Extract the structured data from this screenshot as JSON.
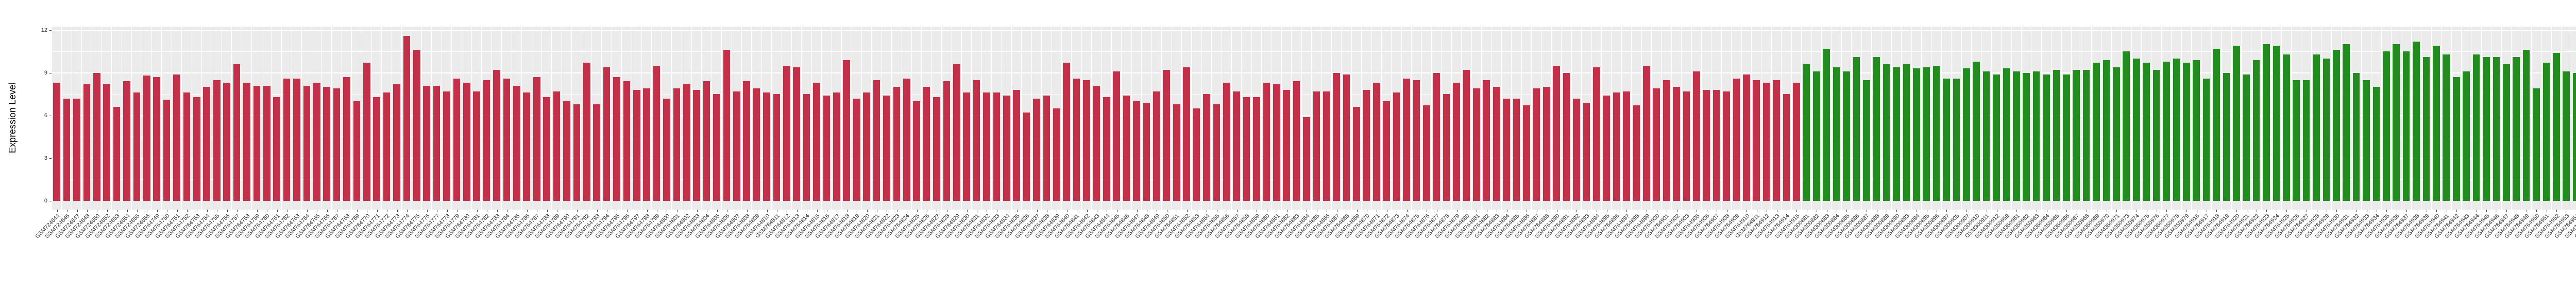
{
  "figure": {
    "background": "#FFFFFF",
    "panel_background": "#EBEBEB",
    "gridline_color": "#FFFFFF",
    "axis_text_color": "#333333",
    "axis_title_color": "#000000"
  },
  "chart_data": {
    "type": "bar",
    "title": "",
    "xlabel": "",
    "ylabel": "Expression Level",
    "ylim": [
      0,
      12
    ],
    "yticks": [
      0,
      3,
      6,
      9,
      12
    ],
    "grid": true,
    "legend_position": "none",
    "x_label_rotation_deg": 45,
    "groups": [
      {
        "name": "group-1-red",
        "color": "#C2304A",
        "labels": [
          "GSM724644",
          "GSM724646",
          "GSM724647",
          "GSM724648",
          "GSM724650",
          "GSM724652",
          "GSM724653",
          "GSM724654",
          "GSM724655",
          "GSM724656",
          "GSM764749",
          "GSM764750",
          "GSM764751",
          "GSM764752",
          "GSM764753",
          "GSM764754",
          "GSM764755",
          "GSM764756",
          "GSM764757",
          "GSM764758",
          "GSM764759",
          "GSM764760",
          "GSM764761",
          "GSM764762",
          "GSM764763",
          "GSM764764",
          "GSM764765",
          "GSM764766",
          "GSM764767",
          "GSM764768",
          "GSM764769",
          "GSM764770",
          "GSM764771",
          "GSM764772",
          "GSM764773",
          "GSM764774",
          "GSM764775",
          "GSM764776",
          "GSM764777",
          "GSM764778",
          "GSM764779",
          "GSM764780",
          "GSM764781",
          "GSM764782",
          "GSM764783",
          "GSM764784",
          "GSM764785",
          "GSM764786",
          "GSM764787",
          "GSM764788",
          "GSM764789",
          "GSM764790",
          "GSM764791",
          "GSM764792",
          "GSM764793",
          "GSM764794",
          "GSM764795",
          "GSM764796",
          "GSM764797",
          "GSM764798",
          "GSM764799",
          "GSM764800",
          "GSM764801",
          "GSM764802",
          "GSM764803",
          "GSM764804",
          "GSM764805",
          "GSM764806",
          "GSM764807",
          "GSM764808",
          "GSM764809",
          "GSM764810",
          "GSM764811",
          "GSM764812",
          "GSM764813",
          "GSM764814",
          "GSM764815",
          "GSM764816",
          "GSM764817",
          "GSM764818",
          "GSM764819",
          "GSM764820",
          "GSM764821",
          "GSM764822",
          "GSM764823",
          "GSM764824",
          "GSM764825",
          "GSM764826",
          "GSM764827",
          "GSM764828",
          "GSM764829",
          "GSM764830",
          "GSM764831",
          "GSM764832",
          "GSM764833",
          "GSM764834",
          "GSM764835",
          "GSM764836",
          "GSM764837",
          "GSM764838",
          "GSM764839",
          "GSM764840",
          "GSM764841",
          "GSM764842",
          "GSM764843",
          "GSM764844",
          "GSM764845",
          "GSM764846",
          "GSM764847",
          "GSM764848",
          "GSM764849",
          "GSM764850",
          "GSM764851",
          "GSM764852",
          "GSM764853",
          "GSM764854",
          "GSM764855",
          "GSM764856",
          "GSM764857",
          "GSM764858",
          "GSM764859",
          "GSM764860",
          "GSM764861",
          "GSM764862",
          "GSM764863",
          "GSM764864",
          "GSM764865",
          "GSM764866",
          "GSM764867",
          "GSM764868",
          "GSM764869",
          "GSM764870",
          "GSM764871",
          "GSM764872",
          "GSM764873",
          "GSM764874",
          "GSM764875",
          "GSM764876",
          "GSM764877",
          "GSM764878",
          "GSM764879",
          "GSM764880",
          "GSM764881",
          "GSM764882",
          "GSM764883",
          "GSM764884",
          "GSM764885",
          "GSM764886",
          "GSM764887",
          "GSM764888",
          "GSM764890",
          "GSM764891",
          "GSM764892",
          "GSM764893",
          "GSM764894",
          "GSM764895",
          "GSM764896",
          "GSM764897",
          "GSM764898",
          "GSM764899",
          "GSM764900",
          "GSM764901",
          "GSM764902",
          "GSM764903",
          "GSM764905",
          "GSM764906",
          "GSM764907",
          "GSM764908",
          "GSM764909",
          "GSM764910",
          "GSM764911",
          "GSM764912",
          "GSM764913",
          "GSM764914",
          "GSM764915"
        ],
        "values": [
          8.3,
          7.2,
          7.2,
          8.2,
          9.0,
          8.2,
          6.6,
          8.4,
          7.6,
          8.8,
          8.7,
          7.1,
          8.9,
          7.6,
          7.3,
          8.0,
          8.5,
          8.3,
          9.6,
          8.3,
          8.1,
          8.1,
          7.3,
          8.6,
          8.6,
          8.1,
          8.3,
          8.0,
          7.9,
          8.7,
          7.0,
          9.7,
          7.3,
          7.6,
          8.2,
          11.6,
          10.6,
          8.1,
          8.1,
          7.7,
          8.6,
          8.3,
          7.7,
          8.5,
          9.2,
          8.6,
          8.1,
          7.6,
          8.7,
          7.3,
          7.7,
          7.0,
          6.8,
          9.7,
          6.8,
          9.4,
          8.7,
          8.4,
          7.8,
          7.9,
          9.5,
          7.2,
          7.9,
          8.2,
          7.8,
          8.4,
          7.5,
          10.6,
          7.7,
          8.4,
          7.9,
          7.6,
          7.5,
          9.5,
          9.4,
          7.5,
          8.3,
          7.4,
          7.6,
          9.9,
          7.2,
          7.6,
          8.5,
          7.4,
          8.0,
          8.6,
          7.0,
          8.0,
          7.3,
          8.4,
          9.6,
          7.6,
          8.5,
          7.6,
          7.6,
          7.4,
          7.8,
          6.2,
          7.2,
          7.4,
          6.5,
          9.7,
          8.6,
          8.5,
          8.1,
          7.3,
          9.1,
          7.4,
          7.0,
          6.9,
          7.7,
          9.2,
          6.8,
          9.4,
          6.5,
          7.5,
          6.8,
          8.3,
          7.7,
          7.3,
          7.3,
          8.3,
          8.2,
          7.8,
          8.4,
          5.9,
          7.7,
          7.7,
          9.0,
          8.9,
          6.6,
          7.8,
          8.3,
          7.0,
          7.6,
          8.6,
          8.5,
          6.7,
          9.0,
          7.5,
          8.3,
          9.2,
          7.9,
          8.5,
          8.0,
          7.2,
          7.2,
          6.7,
          7.9,
          8.0,
          9.5,
          9.0,
          7.2,
          6.9,
          9.4,
          7.4,
          7.6,
          7.7,
          6.7,
          9.5,
          7.9,
          8.5,
          8.0,
          7.7,
          9.1,
          7.8,
          7.8,
          7.7,
          8.6,
          8.9,
          8.5,
          8.3,
          8.5,
          7.5,
          8.3
        ]
      },
      {
        "name": "group-2-green",
        "color": "#238C1E",
        "labels": [
          "GSM300881",
          "GSM300882",
          "GSM300883",
          "GSM300884",
          "GSM300885",
          "GSM300886",
          "GSM300887",
          "GSM300888",
          "GSM300889",
          "GSM300890",
          "GSM300893",
          "GSM300894",
          "GSM300895",
          "GSM300896",
          "GSM300897",
          "GSM300905",
          "GSM300907",
          "GSM300910",
          "GSM300911",
          "GSM300912",
          "GSM350959",
          "GSM350961",
          "GSM350962",
          "GSM350963",
          "GSM350964",
          "GSM350965",
          "GSM350966",
          "GSM350967",
          "GSM350968",
          "GSM350969",
          "GSM350970",
          "GSM350971",
          "GSM350973",
          "GSM350974",
          "GSM350975",
          "GSM350976",
          "GSM350977",
          "GSM350978",
          "GSM350979",
          "GSM764916",
          "GSM764917",
          "GSM764918",
          "GSM764919",
          "GSM764920",
          "GSM764921",
          "GSM764922",
          "GSM764923",
          "GSM764924",
          "GSM764925",
          "GSM764926",
          "GSM764927",
          "GSM764928",
          "GSM764929",
          "GSM764930",
          "GSM764931",
          "GSM764932",
          "GSM764933",
          "GSM764934",
          "GSM764935",
          "GSM764936",
          "GSM764937",
          "GSM764938",
          "GSM764939",
          "GSM764940",
          "GSM764941",
          "GSM764942",
          "GSM764943",
          "GSM764944",
          "GSM764945",
          "GSM764946",
          "GSM764947",
          "GSM764948",
          "GSM764949",
          "GSM764950",
          "GSM764951",
          "GSM764952",
          "GSM764953",
          "GSM764954",
          "GSM764955",
          "GSM764956",
          "GSM764957",
          "GSM764958",
          "GSM764959",
          "GSM764960",
          "GSM80748",
          "GSM80749"
        ],
        "values": [
          9.6,
          9.1,
          10.7,
          9.4,
          9.1,
          10.1,
          8.5,
          10.1,
          9.6,
          9.4,
          9.6,
          9.3,
          9.4,
          9.5,
          8.6,
          8.6,
          9.3,
          9.8,
          9.1,
          8.9,
          9.3,
          9.1,
          9.0,
          9.1,
          8.9,
          9.2,
          8.9,
          9.2,
          9.2,
          9.7,
          9.9,
          9.4,
          10.5,
          10.0,
          9.7,
          9.2,
          9.8,
          10.0,
          9.7,
          9.9,
          8.6,
          10.7,
          9.0,
          10.9,
          8.9,
          9.9,
          11.0,
          10.9,
          10.3,
          8.5,
          8.5,
          10.3,
          10.0,
          10.6,
          11.0,
          9.0,
          8.5,
          8.0,
          10.5,
          11.0,
          10.5,
          11.2,
          10.1,
          10.9,
          10.3,
          8.7,
          9.1,
          10.3,
          10.1,
          10.1,
          9.6,
          10.1,
          10.6,
          7.9,
          9.7,
          10.4,
          9.1,
          9.0,
          10.6,
          10.0,
          9.1,
          9.6,
          10.3,
          9.5,
          9.8,
          9.8
        ]
      }
    ]
  }
}
